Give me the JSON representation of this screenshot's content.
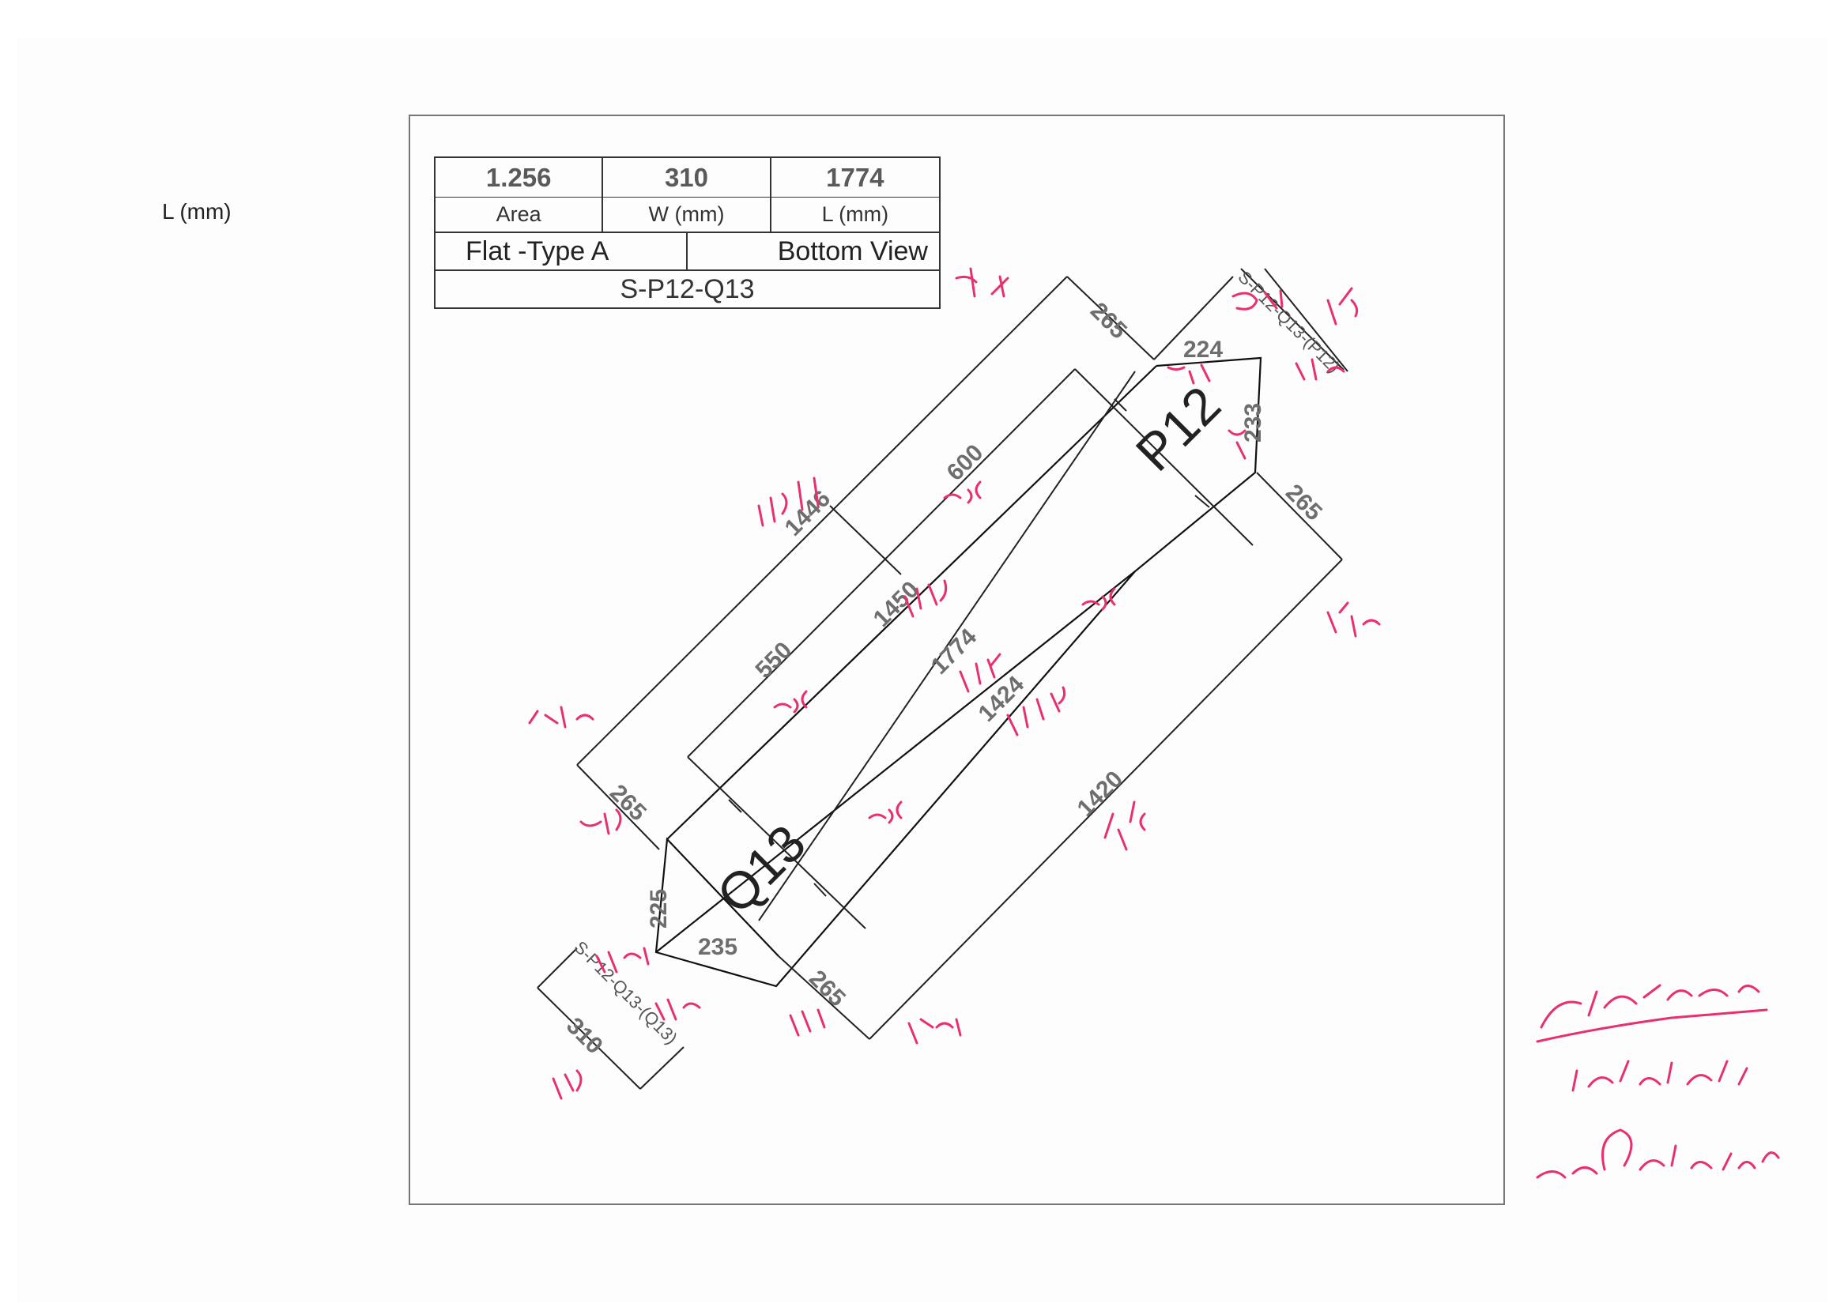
{
  "side_label": "L (mm)",
  "title_block": {
    "area_value": "1.256",
    "width_value": "310",
    "length_value": "1774",
    "area_label": "Area",
    "width_label": "W (mm)",
    "length_label": "L (mm)",
    "type_label": "Flat -Type A",
    "view_label": "Bottom View",
    "part_code": "S-P12-Q13"
  },
  "drawing": {
    "panel_label_top": "P12",
    "panel_label_bottom": "Q13",
    "end_tag_top": "S-P12-Q13-(P12)",
    "end_tag_bottom": "S-P12-Q13-(Q13)",
    "dimensions": {
      "d265_top": "265",
      "d224": "224",
      "d233": "233",
      "d265_right": "265",
      "d1446": "1446",
      "d600": "600",
      "d1450": "1450",
      "d550": "550",
      "d1774": "1774",
      "d1424": "1424",
      "d1420": "1420",
      "d265_left": "265",
      "d225": "225",
      "d235": "235",
      "d265_bottom": "265",
      "d310": "310"
    }
  },
  "colors": {
    "ink": "#222222",
    "dimension_text": "#6e6e6e",
    "handwriting": "#e8306b"
  }
}
